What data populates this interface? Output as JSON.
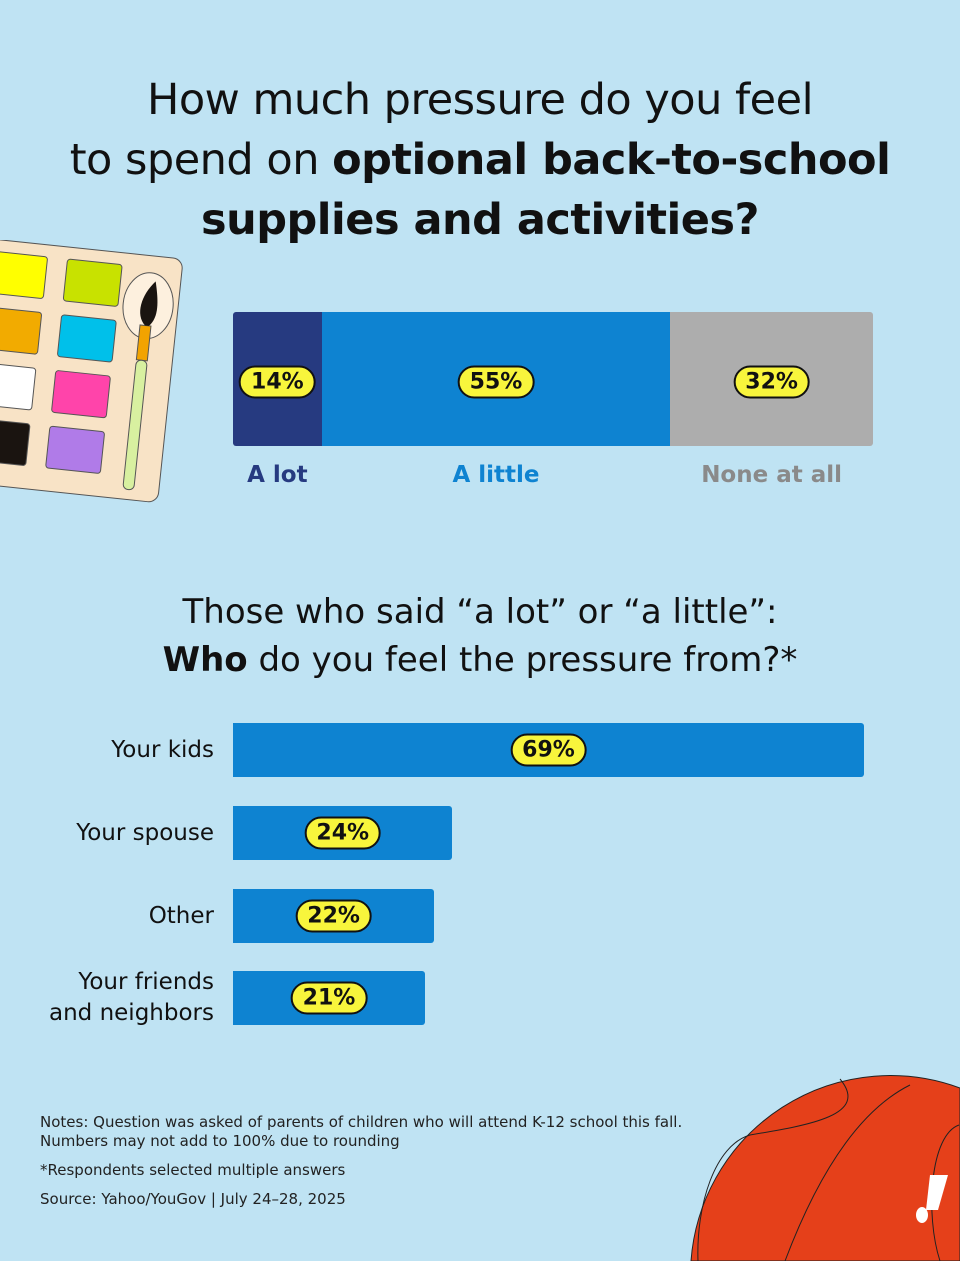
{
  "title": {
    "line1": "How much pressure do you feel",
    "line2_plain": "to spend on ",
    "line2_bold": "optional back-to-school",
    "line3_bold": "supplies and activities?"
  },
  "subtitle": {
    "line1": "Those who said “a lot” or “a little”:",
    "line2_bold": "Who",
    "line2_plain": " do you feel the pressure from?*"
  },
  "chart_data": [
    {
      "type": "bar",
      "stacked": true,
      "orientation": "horizontal",
      "categories": [
        "A lot",
        "A little",
        "None at all"
      ],
      "values": [
        14,
        55,
        32
      ],
      "labels": [
        "14%",
        "55%",
        "32%"
      ],
      "colors": [
        "#263a80",
        "#0e83d1",
        "#adadad"
      ]
    },
    {
      "type": "bar",
      "orientation": "horizontal",
      "categories": [
        "Your kids",
        "Your spouse",
        "Other",
        "Your friends and neighbors"
      ],
      "category_lines": [
        [
          "Your kids"
        ],
        [
          "Your spouse"
        ],
        [
          "Other"
        ],
        [
          "Your friends",
          "and neighbors"
        ]
      ],
      "values": [
        69,
        24,
        22,
        21
      ],
      "labels": [
        "69%",
        "24%",
        "22%",
        "21%"
      ],
      "color": "#0e83d1"
    }
  ],
  "notes": {
    "line1": "Notes: Question was asked of parents of children who will attend K-12 school this fall.",
    "line2": "Numbers may not add to 100% due to rounding",
    "footnote": "*Respondents selected multiple answers",
    "source": "Source: Yahoo/YouGov | July 24–28, 2025"
  },
  "colors": {
    "background": "#bfe3f3",
    "label_highlight": "#f8f53c",
    "basketball": "#e5401a"
  }
}
